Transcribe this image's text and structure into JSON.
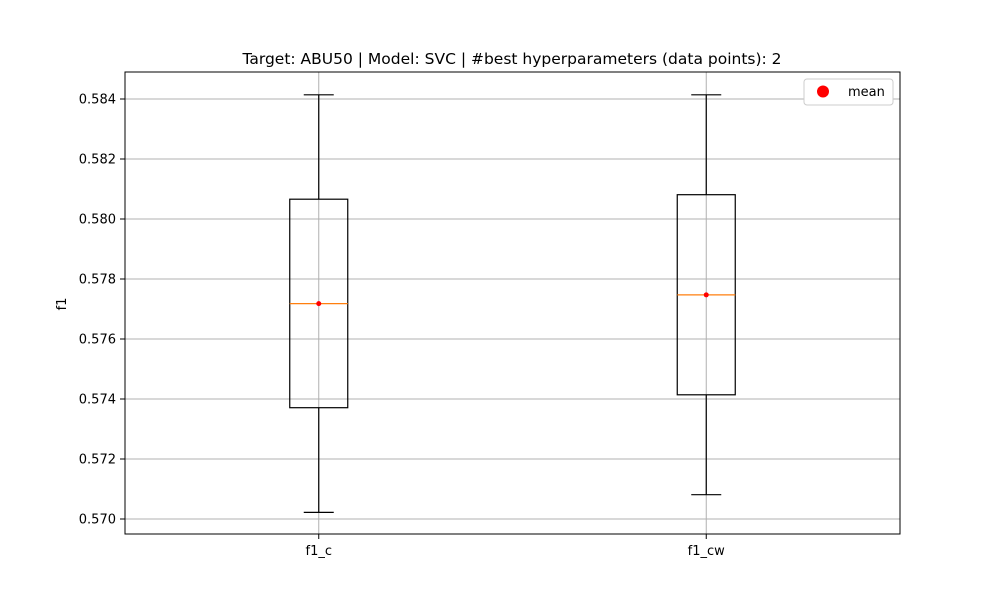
{
  "chart_data": {
    "type": "box",
    "title": "Target: ABU50 | Model: SVC | #best hyperparameters (data points): 2",
    "xlabel": "",
    "ylabel": "f1",
    "categories": [
      "f1_c",
      "f1_cw"
    ],
    "ylim": [
      0.5695,
      0.5849
    ],
    "yticks": [
      0.57,
      0.572,
      0.574,
      0.576,
      0.578,
      0.58,
      0.582,
      0.584
    ],
    "ytick_labels": [
      "0.570",
      "0.572",
      "0.574",
      "0.576",
      "0.578",
      "0.580",
      "0.582",
      "0.584"
    ],
    "grid": true,
    "boxes": [
      {
        "category": "f1_c",
        "whisker_low": 0.57022,
        "q1": 0.57371,
        "median": 0.57718,
        "q3": 0.58066,
        "whisker_high": 0.58414,
        "mean": 0.57718
      },
      {
        "category": "f1_cw",
        "whisker_low": 0.57081,
        "q1": 0.57414,
        "median": 0.57747,
        "q3": 0.58081,
        "whisker_high": 0.58414,
        "mean": 0.57747
      }
    ],
    "legend": {
      "position": "top-right",
      "entries": [
        "mean"
      ]
    },
    "colors": {
      "box": "#000000",
      "median": "#ff7f0e",
      "mean": "#ff0000",
      "grid": "#b0b0b0"
    }
  }
}
